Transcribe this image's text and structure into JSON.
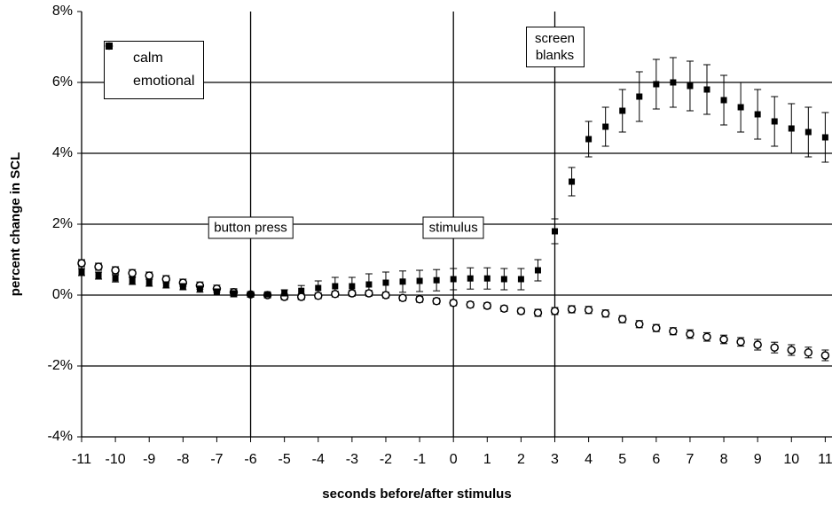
{
  "chart_data": {
    "type": "scatter",
    "xlabel": "seconds before/after stimulus",
    "ylabel": "percent change in SCL",
    "x": [
      -11,
      -10.5,
      -10,
      -9.5,
      -9,
      -8.5,
      -8,
      -7.5,
      -7,
      -6.5,
      -6,
      -5.5,
      -5,
      -4.5,
      -4,
      -3.5,
      -3,
      -2.5,
      -2,
      -1.5,
      -1,
      -0.5,
      0,
      0.5,
      1,
      1.5,
      2,
      2.5,
      3,
      3.5,
      4,
      4.5,
      5,
      5.5,
      6,
      6.5,
      7,
      7.5,
      8,
      8.5,
      9,
      9.5,
      10,
      10.5,
      11
    ],
    "series": [
      {
        "name": "calm",
        "color": "#000000",
        "marker": "circle",
        "values": [
          0.9,
          0.8,
          0.7,
          0.62,
          0.55,
          0.45,
          0.35,
          0.27,
          0.18,
          0.08,
          0.02,
          0,
          -0.05,
          -0.05,
          -0.02,
          0.03,
          0.05,
          0.05,
          0,
          -0.08,
          -0.12,
          -0.17,
          -0.22,
          -0.27,
          -0.3,
          -0.38,
          -0.45,
          -0.5,
          -0.45,
          -0.4,
          -0.42,
          -0.52,
          -0.68,
          -0.82,
          -0.93,
          -1.02,
          -1.1,
          -1.18,
          -1.25,
          -1.32,
          -1.4,
          -1.48,
          -1.55,
          -1.62,
          -1.7
        ],
        "errors": [
          0.1,
          0.1,
          0.1,
          0.1,
          0.1,
          0.1,
          0.1,
          0.1,
          0.1,
          0.1,
          0.08,
          0.08,
          0.08,
          0.08,
          0.08,
          0.08,
          0.08,
          0.08,
          0.08,
          0.08,
          0.08,
          0.08,
          0.08,
          0.08,
          0.08,
          0.08,
          0.08,
          0.1,
          0.1,
          0.1,
          0.1,
          0.1,
          0.1,
          0.1,
          0.1,
          0.1,
          0.12,
          0.12,
          0.12,
          0.12,
          0.15,
          0.15,
          0.15,
          0.15,
          0.15
        ]
      },
      {
        "name": "emotional",
        "color": "#000000",
        "marker": "square",
        "values": [
          0.65,
          0.55,
          0.47,
          0.4,
          0.35,
          0.3,
          0.25,
          0.18,
          0.1,
          0.05,
          0.02,
          0.02,
          0.05,
          0.12,
          0.2,
          0.25,
          0.25,
          0.3,
          0.35,
          0.38,
          0.4,
          0.42,
          0.45,
          0.47,
          0.47,
          0.45,
          0.45,
          0.7,
          1.8,
          3.2,
          4.4,
          4.75,
          5.2,
          5.6,
          5.95,
          6.0,
          5.9,
          5.8,
          5.5,
          5.3,
          5.1,
          4.9,
          4.7,
          4.6,
          4.45
        ],
        "errors": [
          0.1,
          0.1,
          0.1,
          0.1,
          0.1,
          0.1,
          0.1,
          0.1,
          0.1,
          0.1,
          0.05,
          0.05,
          0.1,
          0.15,
          0.2,
          0.25,
          0.25,
          0.3,
          0.3,
          0.3,
          0.3,
          0.3,
          0.3,
          0.3,
          0.3,
          0.3,
          0.3,
          0.3,
          0.35,
          0.4,
          0.5,
          0.55,
          0.6,
          0.7,
          0.7,
          0.7,
          0.7,
          0.7,
          0.7,
          0.7,
          0.7,
          0.7,
          0.7,
          0.7,
          0.7
        ]
      }
    ],
    "xlim": [
      -11,
      11.2
    ],
    "xticks": [
      -11,
      -10,
      -9,
      -8,
      -7,
      -6,
      -5,
      -4,
      -3,
      -2,
      -1,
      0,
      1,
      2,
      3,
      4,
      5,
      6,
      7,
      8,
      9,
      10,
      11
    ],
    "ylim": [
      -4,
      8
    ],
    "yticks": [
      {
        "value": -4,
        "label": "-4%"
      },
      {
        "value": -2,
        "label": "-2%"
      },
      {
        "value": 0,
        "label": "0%"
      },
      {
        "value": 2,
        "label": "2%"
      },
      {
        "value": 4,
        "label": "4%"
      },
      {
        "value": 6,
        "label": "6%"
      },
      {
        "value": 8,
        "label": "8%"
      }
    ],
    "vlines": [
      -6,
      0,
      3
    ],
    "grid": true,
    "legend": "upper left",
    "annotations": [
      {
        "text": "button press",
        "x": -6,
        "y": 1.9
      },
      {
        "text": "stimulus",
        "x": 0,
        "y": 1.9
      },
      {
        "text": "screen blanks",
        "x": 3,
        "y": 7
      }
    ]
  }
}
